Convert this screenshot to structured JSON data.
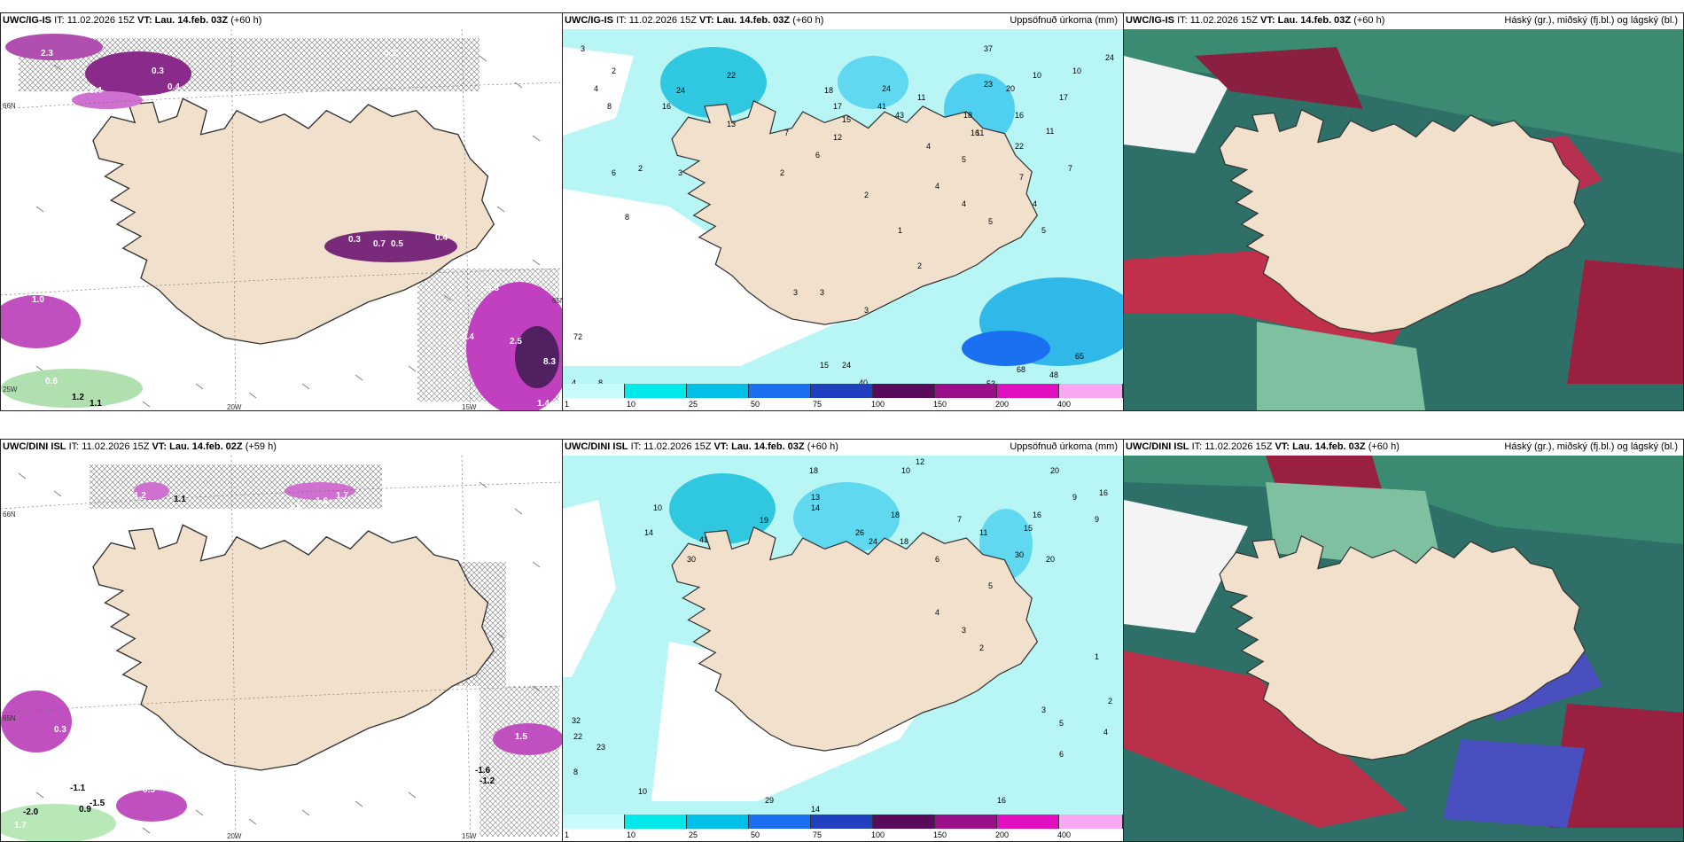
{
  "panels": [
    {
      "id": "top-left",
      "title": {
        "model": "UWC/IG-IS",
        "it": "IT: 11.02.2026 15Z",
        "vt": "VT: Lau. 14.feb. 03Z",
        "lead": "(+60 h)"
      },
      "right_label": "",
      "labels": [
        "2.3",
        "0.3",
        "0.4",
        "3.4",
        "0.8",
        "0.3",
        "0.7",
        "0.5",
        "0.4",
        "0.3",
        "2.5",
        "0.4",
        "8.3",
        "1.4",
        "1.0",
        "0.6",
        "2.1",
        "1.2",
        "1.1",
        "0.6",
        "0.3"
      ],
      "axes": [
        "20W",
        "15W",
        "66N",
        "65N",
        "25W"
      ]
    },
    {
      "id": "top-middle",
      "title": {
        "model": "UWC/IG-IS",
        "it": "IT: 11.02.2026 15Z",
        "vt": "VT: Lau. 14.feb. 03Z",
        "lead": "(+60 h)"
      },
      "right_label": "Uppsöfnuð úrkoma (mm)",
      "numbers": [
        "3",
        "2",
        "4",
        "8",
        "22",
        "24",
        "16",
        "13",
        "18",
        "17",
        "24",
        "41",
        "43",
        "15",
        "11",
        "12",
        "37",
        "20",
        "10",
        "17",
        "24",
        "23",
        "16",
        "22",
        "18",
        "5",
        "11",
        "7",
        "4",
        "10",
        "2",
        "6",
        "3",
        "7",
        "16",
        "8",
        "4",
        "3",
        "1",
        "4",
        "5",
        "4",
        "2",
        "2",
        "3",
        "3",
        "7",
        "72",
        "4",
        "8",
        "15",
        "24",
        "27",
        "40",
        "53",
        "68",
        "48",
        "65",
        "11",
        "6",
        "2",
        "5"
      ],
      "colorbar": {
        "ticks": [
          "1",
          "10",
          "25",
          "50",
          "75",
          "100",
          "150",
          "200",
          "400"
        ],
        "colors": [
          "#c8fbfb",
          "#00e8e8",
          "#00c0e8",
          "#1a70f0",
          "#2040c0",
          "#5a0a5a",
          "#9a108a",
          "#e010c0",
          "#f8a8f0"
        ]
      }
    },
    {
      "id": "top-right",
      "title": {
        "model": "UWC/IG-IS",
        "it": "IT: 11.02.2026 15Z",
        "vt": "VT: Lau. 14.feb. 03Z",
        "lead": "(+60 h)"
      },
      "right_label": "Háský (gr.), miðský (fj.bl.) og lágský (bl.)"
    },
    {
      "id": "bottom-left",
      "title": {
        "model": "UWC/DINI ISL",
        "it": "IT: 11.02.2026 15Z",
        "vt": "VT: Lau. 14.feb. 02Z",
        "lead": "(+59 h)"
      },
      "right_label": "",
      "labels": [
        "1.2",
        "1.1",
        "1.6",
        "1.7",
        "1.5",
        "0.5",
        "0.4",
        "-1.1",
        "-1.5",
        "0.9",
        "-2.0",
        "1.7",
        "4.5",
        "0.6",
        "-1.6",
        "-1.2",
        "0.3",
        "0.6",
        "1.5"
      ],
      "axes": [
        "20W",
        "15W",
        "66N",
        "65N"
      ]
    },
    {
      "id": "bottom-middle",
      "title": {
        "model": "UWC/DINI ISL",
        "it": "IT: 11.02.2026 15Z",
        "vt": "VT: Lau. 14.feb. 03Z",
        "lead": "(+60 h)"
      },
      "right_label": "Uppsöfnuð úrkoma (mm)",
      "numbers": [
        "12",
        "10",
        "18",
        "20",
        "16",
        "13",
        "14",
        "26",
        "18",
        "19",
        "41",
        "30",
        "10",
        "14",
        "11",
        "15",
        "16",
        "20",
        "30",
        "9",
        "7",
        "24",
        "18",
        "6",
        "5",
        "4",
        "3",
        "2",
        "1",
        "32",
        "22",
        "23",
        "8",
        "10",
        "14",
        "29",
        "16",
        "6",
        "5",
        "4",
        "3",
        "2",
        "9"
      ],
      "colorbar": {
        "ticks": [
          "1",
          "10",
          "25",
          "50",
          "75",
          "100",
          "150",
          "200",
          "400"
        ],
        "colors": [
          "#c8fbfb",
          "#00e8e8",
          "#00c0e8",
          "#1a70f0",
          "#2040c0",
          "#5a0a5a",
          "#9a108a",
          "#e010c0",
          "#f8a8f0"
        ]
      }
    },
    {
      "id": "bottom-right",
      "title": {
        "model": "UWC/DINI ISL",
        "it": "IT: 11.02.2026 15Z",
        "vt": "VT: Lau. 14.feb. 03Z",
        "lead": "(+60 h)"
      },
      "right_label": "Háský (gr.), miðský (fj.bl.) og lágský (bl.)"
    }
  ]
}
